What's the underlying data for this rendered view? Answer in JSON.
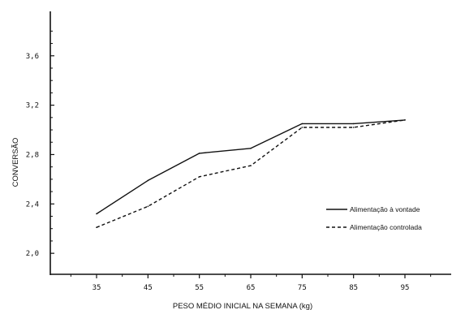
{
  "chart_data": {
    "type": "line",
    "xlabel": "PESO MÉDIO INICIAL NA SEMANA (kg)",
    "ylabel": "CONVERSÃO",
    "x": [
      35,
      45,
      55,
      65,
      75,
      85,
      95
    ],
    "x_tick_labels": [
      "35",
      "45",
      "55",
      "65",
      "75",
      "85",
      "95"
    ],
    "y_ticks": [
      2.0,
      2.4,
      2.8,
      3.2,
      3.6
    ],
    "y_tick_labels": [
      "2,0",
      "2,4",
      "2,8",
      "3,2",
      "3,6"
    ],
    "xlim": [
      26,
      104
    ],
    "ylim": [
      1.83,
      3.96
    ],
    "grid": false,
    "legend_position": "bottom-right",
    "series": [
      {
        "name": "Alimentação à vontade",
        "style": "solid",
        "values": [
          2.32,
          2.59,
          2.81,
          2.85,
          3.05,
          3.05,
          3.08
        ]
      },
      {
        "name": "Alimentação controlada",
        "style": "dashed",
        "values": [
          2.21,
          2.38,
          2.62,
          2.71,
          3.02,
          3.02,
          3.08
        ]
      }
    ]
  }
}
